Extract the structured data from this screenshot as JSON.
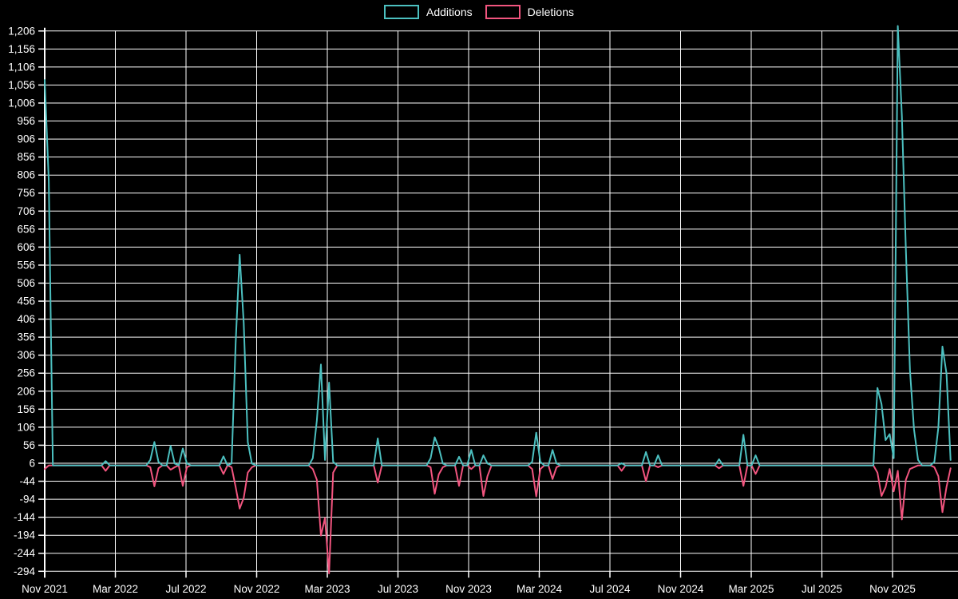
{
  "page": {
    "background": "#000000",
    "text_color": "#ffffff"
  },
  "legend": {
    "items": [
      {
        "label": "Additions",
        "color": "#4cc0c0"
      },
      {
        "label": "Deletions",
        "color": "#f2557f"
      }
    ]
  },
  "chart_data": {
    "type": "line",
    "title": "",
    "xlabel": "",
    "ylabel": "",
    "legend_position": "top-center",
    "grid": true,
    "background": "#000000",
    "grid_color": "#ffffff",
    "x_tick_labels": [
      "Nov 2021",
      "Mar 2022",
      "Jul 2022",
      "Nov 2022",
      "Mar 2023",
      "Jul 2023",
      "Nov 2023",
      "Mar 2024",
      "Jul 2024",
      "Nov 2024",
      "Mar 2025",
      "Jul 2025",
      "Nov 2025"
    ],
    "y_axis": {
      "min": -294,
      "max": 1206,
      "tick_step": 50
    },
    "x_axis_note": "weekly points, week 0 = Nov 2021, 224 weeks to Dec 2025, values 0 except listed spikes",
    "weeks_total": 224,
    "series": [
      {
        "name": "Additions",
        "color": "#4cc0c0",
        "points_weekly_sparse": [
          [
            0,
            1070
          ],
          [
            1,
            790
          ],
          [
            15,
            12
          ],
          [
            26,
            15
          ],
          [
            27,
            65
          ],
          [
            28,
            10
          ],
          [
            31,
            54
          ],
          [
            32,
            5
          ],
          [
            34,
            47
          ],
          [
            35,
            5
          ],
          [
            44,
            25
          ],
          [
            46,
            5
          ],
          [
            47,
            340
          ],
          [
            48,
            585
          ],
          [
            49,
            395
          ],
          [
            50,
            65
          ],
          [
            51,
            5
          ],
          [
            66,
            20
          ],
          [
            67,
            125
          ],
          [
            68,
            280
          ],
          [
            69,
            15
          ],
          [
            70,
            230
          ],
          [
            71,
            10
          ],
          [
            82,
            75
          ],
          [
            95,
            20
          ],
          [
            96,
            78
          ],
          [
            97,
            50
          ],
          [
            98,
            5
          ],
          [
            102,
            24
          ],
          [
            105,
            43
          ],
          [
            108,
            28
          ],
          [
            109,
            5
          ],
          [
            120,
            10
          ],
          [
            121,
            91
          ],
          [
            122,
            10
          ],
          [
            125,
            43
          ],
          [
            126,
            5
          ],
          [
            142,
            6
          ],
          [
            148,
            37
          ],
          [
            151,
            28
          ],
          [
            166,
            17
          ],
          [
            172,
            85
          ],
          [
            175,
            28
          ],
          [
            205,
            215
          ],
          [
            206,
            170
          ],
          [
            207,
            70
          ],
          [
            208,
            87
          ],
          [
            209,
            20
          ],
          [
            210,
            1220
          ],
          [
            211,
            970
          ],
          [
            212,
            600
          ],
          [
            213,
            265
          ],
          [
            214,
            100
          ],
          [
            215,
            15
          ],
          [
            219,
            10
          ],
          [
            220,
            105
          ],
          [
            221,
            330
          ],
          [
            222,
            255
          ],
          [
            223,
            15
          ]
        ]
      },
      {
        "name": "Deletions",
        "color": "#f2557f",
        "points_weekly_sparse": [
          [
            0,
            -10
          ],
          [
            15,
            -15
          ],
          [
            26,
            -5
          ],
          [
            27,
            -58
          ],
          [
            28,
            -8
          ],
          [
            31,
            -12
          ],
          [
            32,
            -5
          ],
          [
            34,
            -57
          ],
          [
            35,
            -5
          ],
          [
            44,
            -24
          ],
          [
            46,
            -5
          ],
          [
            47,
            -60
          ],
          [
            48,
            -120
          ],
          [
            49,
            -90
          ],
          [
            50,
            -20
          ],
          [
            51,
            -5
          ],
          [
            66,
            -10
          ],
          [
            67,
            -40
          ],
          [
            68,
            -195
          ],
          [
            69,
            -146
          ],
          [
            70,
            -300
          ],
          [
            71,
            -20
          ],
          [
            82,
            -48
          ],
          [
            95,
            -5
          ],
          [
            96,
            -79
          ],
          [
            97,
            -25
          ],
          [
            98,
            -5
          ],
          [
            102,
            -57
          ],
          [
            105,
            -10
          ],
          [
            108,
            -85
          ],
          [
            109,
            -30
          ],
          [
            120,
            -10
          ],
          [
            121,
            -86
          ],
          [
            122,
            -10
          ],
          [
            125,
            -38
          ],
          [
            126,
            -5
          ],
          [
            142,
            -15
          ],
          [
            148,
            -44
          ],
          [
            151,
            -5
          ],
          [
            166,
            -8
          ],
          [
            172,
            -57
          ],
          [
            175,
            -24
          ],
          [
            205,
            -20
          ],
          [
            206,
            -85
          ],
          [
            207,
            -60
          ],
          [
            208,
            -10
          ],
          [
            209,
            -72
          ],
          [
            210,
            -15
          ],
          [
            211,
            -150
          ],
          [
            212,
            -40
          ],
          [
            213,
            -10
          ],
          [
            214,
            -5
          ],
          [
            219,
            -5
          ],
          [
            220,
            -30
          ],
          [
            221,
            -130
          ],
          [
            222,
            -60
          ],
          [
            223,
            -8
          ]
        ]
      }
    ]
  }
}
